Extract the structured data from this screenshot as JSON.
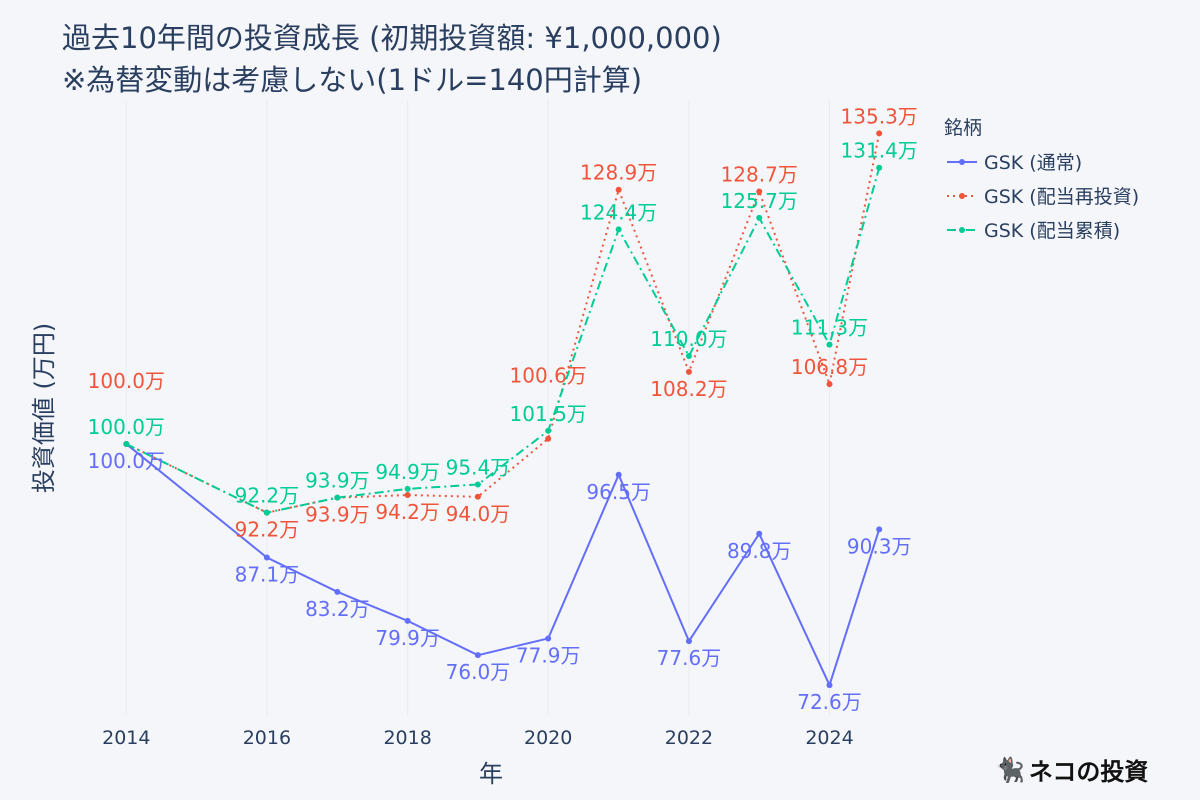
{
  "chart_data": {
    "type": "line",
    "title_line1": "過去10年間の投資成長 (初期投資額: ¥1,000,000)",
    "title_line2": "※為替変動は考慮しない(1ドル=140円計算)",
    "xlabel": "年",
    "ylabel": "投資価値 (万円)",
    "x_ticks": [
      "2014",
      "2016",
      "2018",
      "2020",
      "2022",
      "2024"
    ],
    "xlim": [
      "2013-02-01",
      "2025-04-15"
    ],
    "ylim": [
      69.2,
      139.1
    ],
    "grid": true,
    "legend_title": "銘柄",
    "legend_position": "top-right",
    "label_suffix": "万",
    "x": [
      "2014-01-01",
      "2016-01-01",
      "2017-01-01",
      "2018-01-01",
      "2019-01-01",
      "2020-01-01",
      "2021-01-01",
      "2022-01-01",
      "2023-01-01",
      "2024-01-01",
      "2024-09-15"
    ],
    "series": [
      {
        "name": "GSK (通常)",
        "color": "#636efa",
        "dash": "solid",
        "label_pos": "bottom",
        "values": [
          100.0,
          87.1,
          83.2,
          79.9,
          76.0,
          77.9,
          96.5,
          77.6,
          89.8,
          72.6,
          90.3
        ]
      },
      {
        "name": "GSK (配当再投資)",
        "color": "#ef553b",
        "dash": "dot",
        "label_pos": "top",
        "values": [
          100.0,
          92.2,
          93.9,
          94.2,
          94.0,
          100.6,
          128.9,
          108.2,
          128.7,
          106.8,
          135.3
        ]
      },
      {
        "name": "GSK (配当累積)",
        "color": "#00cc96",
        "dash": "dashdot",
        "label_pos": "top",
        "values": [
          100.0,
          92.2,
          93.9,
          94.9,
          95.4,
          101.5,
          124.4,
          110.0,
          125.7,
          111.3,
          131.4
        ]
      }
    ]
  },
  "watermark": {
    "text": "ネコの投資",
    "icon": "black-cat-icon"
  }
}
